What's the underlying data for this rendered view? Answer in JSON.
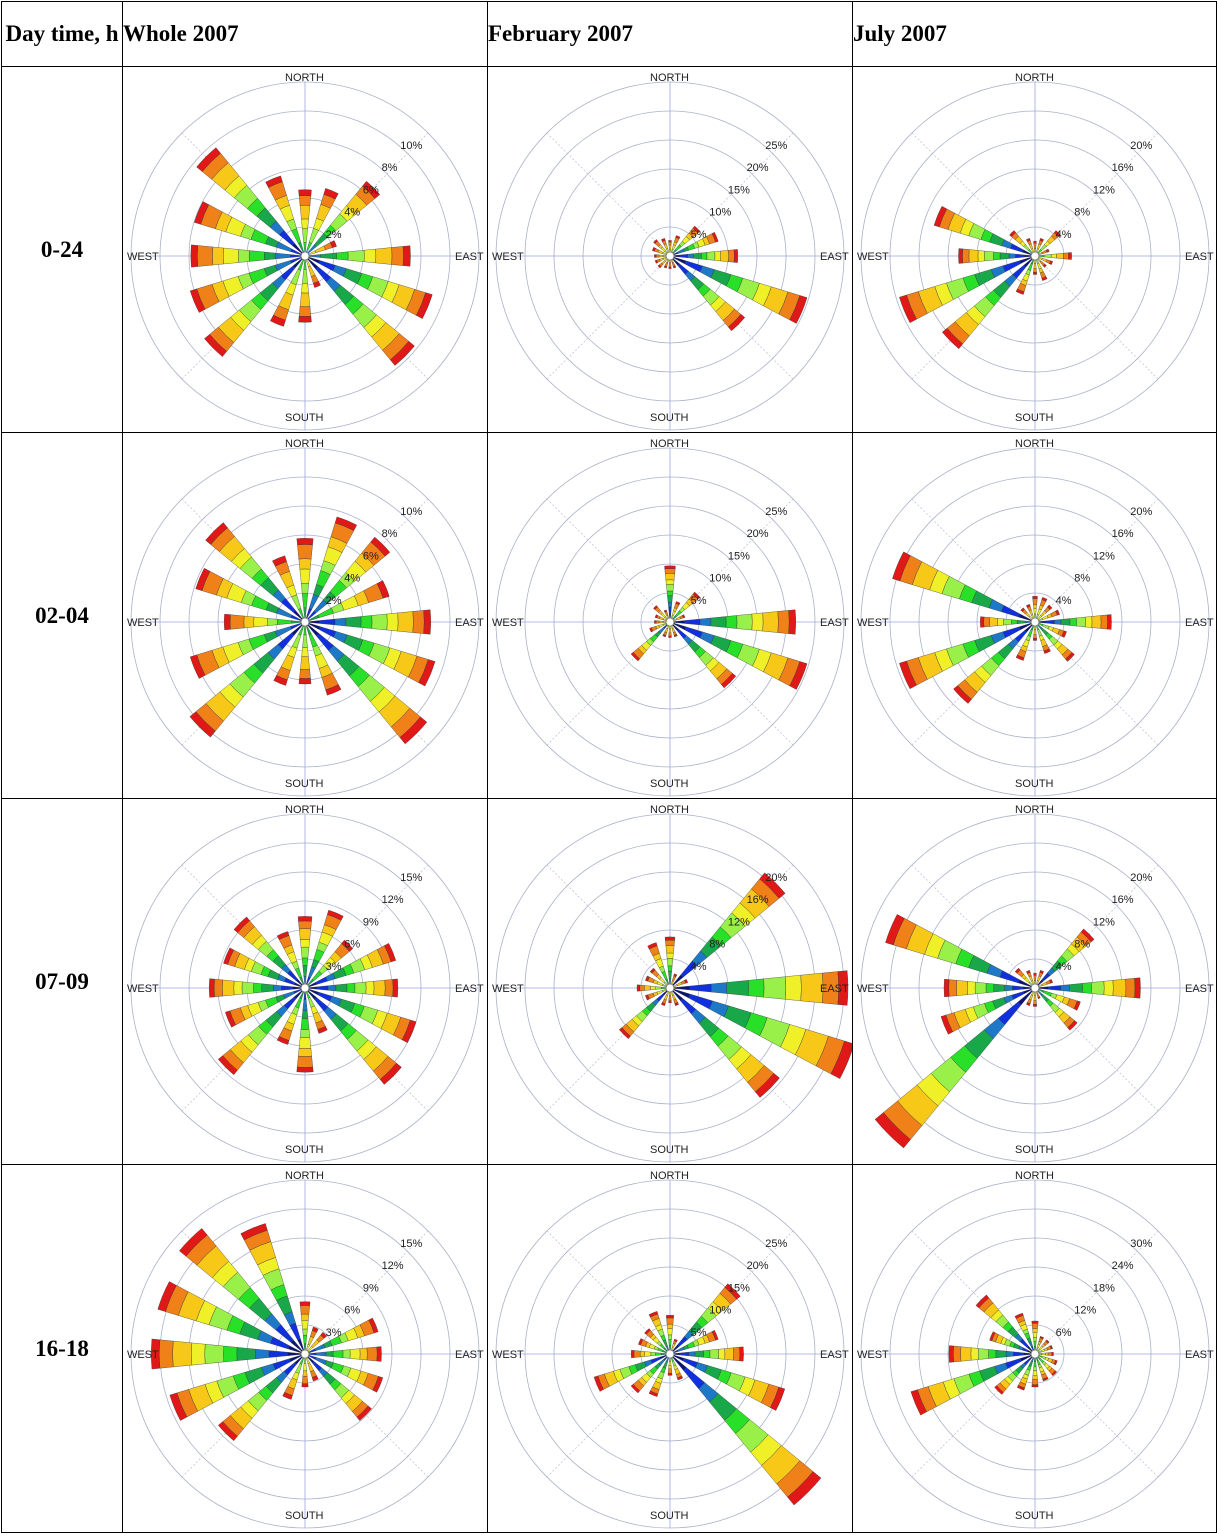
{
  "header": {
    "col0": "Day time, h",
    "col1": "Whole 2007",
    "col2": "February 2007",
    "col3": "July 2007"
  },
  "compass": {
    "north": "NORTH",
    "south": "SOUTH",
    "east": "EAST",
    "west": "WEST"
  },
  "speed_colors": [
    "#0a1478",
    "#1030e0",
    "#1e78c8",
    "#18a84a",
    "#28e028",
    "#98f048",
    "#f0f028",
    "#f8c818",
    "#f08018",
    "#e01818"
  ],
  "chart_data": [
    {
      "type": "polar-bar",
      "row": "0-24",
      "panel": "Whole 2007",
      "rings": [
        2,
        4,
        6,
        8,
        10
      ],
      "ring_labels": [
        "2%",
        "4%",
        "6%",
        "8%",
        "10%"
      ],
      "directions_deg": [
        0,
        22.5,
        45,
        67.5,
        90,
        112.5,
        135,
        157.5,
        180,
        202.5,
        225,
        247.5,
        270,
        292.5,
        315,
        337.5
      ],
      "totals": [
        4.3,
        4.6,
        6.4,
        2,
        7,
        8.9,
        9.5,
        2,
        4.3,
        4.8,
        8.7,
        8,
        7.6,
        7.7,
        9.4,
        5.5
      ]
    },
    {
      "type": "polar-bar",
      "row": "0-24",
      "panel": "February 2007",
      "rings": [
        5,
        10,
        15,
        20,
        25
      ],
      "ring_labels": [
        "5%",
        "10%",
        "15%",
        "20%",
        "25%"
      ],
      "directions_deg": [
        0,
        22.5,
        45,
        67.5,
        90,
        112.5,
        135,
        157.5,
        180,
        202.5,
        225,
        247.5,
        270,
        292.5,
        315,
        337.5
      ],
      "totals": [
        2,
        3,
        6,
        8,
        11,
        24,
        16,
        1.5,
        1.5,
        1.5,
        2,
        2,
        2,
        2.5,
        3,
        2.5
      ]
    },
    {
      "type": "polar-bar",
      "row": "0-24",
      "panel": "July 2007",
      "rings": [
        4,
        8,
        12,
        16,
        20
      ],
      "ring_labels": [
        "4%",
        "8%",
        "12%",
        "16%",
        "20%"
      ],
      "directions_deg": [
        0,
        22.5,
        45,
        67.5,
        90,
        112.5,
        135,
        157.5,
        180,
        202.5,
        225,
        247.5,
        270,
        292.5,
        315,
        337.5
      ],
      "totals": [
        1.5,
        2,
        4,
        1.5,
        4.5,
        2,
        1.5,
        3,
        2,
        5,
        16,
        19,
        10,
        14,
        4,
        2
      ]
    },
    {
      "type": "polar-bar",
      "row": "02-04",
      "panel": "Whole 2007",
      "rings": [
        2,
        4,
        6,
        8,
        10
      ],
      "ring_labels": [
        "2%",
        "4%",
        "6%",
        "8%",
        "10%"
      ],
      "directions_deg": [
        0,
        22.5,
        45,
        67.5,
        90,
        112.5,
        135,
        157.5,
        180,
        202.5,
        225,
        247.5,
        270,
        292.5,
        315,
        337.5
      ],
      "totals": [
        5.5,
        7.3,
        7.3,
        5.8,
        8.4,
        9.1,
        10.6,
        5,
        4,
        4.3,
        10,
        8,
        5.3,
        7.6,
        8.6,
        4.5
      ]
    },
    {
      "type": "polar-bar",
      "row": "02-04",
      "panel": "February 2007",
      "rings": [
        5,
        10,
        15,
        20,
        25
      ],
      "ring_labels": [
        "5%",
        "10%",
        "15%",
        "20%",
        "25%"
      ],
      "directions_deg": [
        0,
        22.5,
        45,
        67.5,
        90,
        112.5,
        135,
        157.5,
        180,
        202.5,
        225,
        247.5,
        270,
        292.5,
        315,
        337.5
      ],
      "totals": [
        9,
        3,
        6,
        2,
        21,
        24,
        14,
        2,
        2,
        2,
        8,
        3,
        2,
        2,
        3,
        1.5
      ]
    },
    {
      "type": "polar-bar",
      "row": "02-04",
      "panel": "July 2007",
      "rings": [
        4,
        8,
        12,
        16,
        20
      ],
      "ring_labels": [
        "4%",
        "8%",
        "12%",
        "16%",
        "20%"
      ],
      "directions_deg": [
        0,
        22.5,
        45,
        67.5,
        90,
        112.5,
        135,
        157.5,
        180,
        202.5,
        225,
        247.5,
        270,
        292.5,
        315,
        337.5
      ],
      "totals": [
        3,
        3,
        2.5,
        3,
        10,
        4,
        6.5,
        4,
        2,
        5,
        14,
        19,
        7,
        20,
        2,
        2
      ]
    },
    {
      "type": "polar-bar",
      "row": "07-09",
      "panel": "Whole 2007",
      "rings": [
        3,
        6,
        9,
        12,
        15
      ],
      "ring_labels": [
        "3%",
        "6%",
        "9%",
        "12%",
        "15%"
      ],
      "directions_deg": [
        0,
        22.5,
        45,
        67.5,
        90,
        112.5,
        135,
        157.5,
        180,
        202.5,
        225,
        247.5,
        270,
        292.5,
        315,
        337.5
      ],
      "totals": [
        7,
        8,
        6,
        9.4,
        9.2,
        11.6,
        12.5,
        4.5,
        8.3,
        5.7,
        11.2,
        8.2,
        9.5,
        8.4,
        9.1,
        5.7
      ]
    },
    {
      "type": "polar-bar",
      "row": "07-09",
      "panel": "February 2007",
      "rings": [
        4,
        8,
        12,
        16,
        20
      ],
      "ring_labels": [
        "4%",
        "8%",
        "12%",
        "16%",
        "20%"
      ],
      "directions_deg": [
        0,
        22.5,
        45,
        67.5,
        90,
        112.5,
        135,
        157.5,
        180,
        202.5,
        225,
        247.5,
        270,
        292.5,
        315,
        337.5
      ],
      "totals": [
        6.5,
        1.5,
        20,
        2,
        24,
        26,
        19,
        2,
        1.5,
        2,
        8.5,
        3,
        4,
        3,
        3,
        6
      ]
    },
    {
      "type": "polar-bar",
      "row": "07-09",
      "panel": "July 2007",
      "rings": [
        4,
        8,
        12,
        16,
        20
      ],
      "ring_labels": [
        "4%",
        "8%",
        "12%",
        "16%",
        "20%"
      ],
      "directions_deg": [
        0,
        22.5,
        45,
        67.5,
        90,
        112.5,
        135,
        157.5,
        180,
        202.5,
        225,
        247.5,
        270,
        292.5,
        315,
        337.5
      ],
      "totals": [
        1.5,
        2,
        10,
        2,
        14,
        6,
        7,
        1,
        2,
        2,
        28,
        13,
        12,
        21,
        3,
        2
      ]
    },
    {
      "type": "polar-bar",
      "row": "16-18",
      "panel": "Whole 2007",
      "rings": [
        3,
        6,
        9,
        12,
        15
      ],
      "ring_labels": [
        "3%",
        "6%",
        "9%",
        "12%",
        "15%"
      ],
      "directions_deg": [
        0,
        22.5,
        45,
        67.5,
        90,
        112.5,
        135,
        157.5,
        180,
        202.5,
        225,
        247.5,
        270,
        292.5,
        315,
        337.5
      ],
      "totals": [
        5,
        2.5,
        2.5,
        7.5,
        7.5,
        8,
        8.5,
        2.5,
        3,
        4.5,
        11.2,
        14.2,
        15.5,
        15.5,
        16.4,
        13.7
      ]
    },
    {
      "type": "polar-bar",
      "row": "16-18",
      "panel": "February 2007",
      "rings": [
        5,
        10,
        15,
        20,
        25
      ],
      "ring_labels": [
        "5%",
        "10%",
        "15%",
        "20%",
        "25%"
      ],
      "directions_deg": [
        0,
        22.5,
        45,
        67.5,
        90,
        112.5,
        135,
        157.5,
        180,
        202.5,
        225,
        247.5,
        270,
        292.5,
        315,
        337.5
      ],
      "totals": [
        6,
        2,
        15,
        8,
        12,
        20,
        33,
        4,
        3,
        7,
        8,
        13,
        6,
        5,
        5,
        7
      ]
    },
    {
      "type": "polar-bar",
      "row": "16-18",
      "panel": "July 2007",
      "rings": [
        6,
        12,
        18,
        24,
        30
      ],
      "ring_labels": [
        "6%",
        "12%",
        "18%",
        "24%",
        "30%"
      ],
      "directions_deg": [
        0,
        22.5,
        45,
        67.5,
        90,
        112.5,
        135,
        157.5,
        180,
        202.5,
        225,
        247.5,
        270,
        292.5,
        315,
        337.5
      ],
      "totals": [
        6,
        3,
        3,
        3,
        3,
        4,
        5,
        5,
        6,
        7,
        10,
        26,
        17,
        9,
        15,
        8
      ]
    }
  ]
}
